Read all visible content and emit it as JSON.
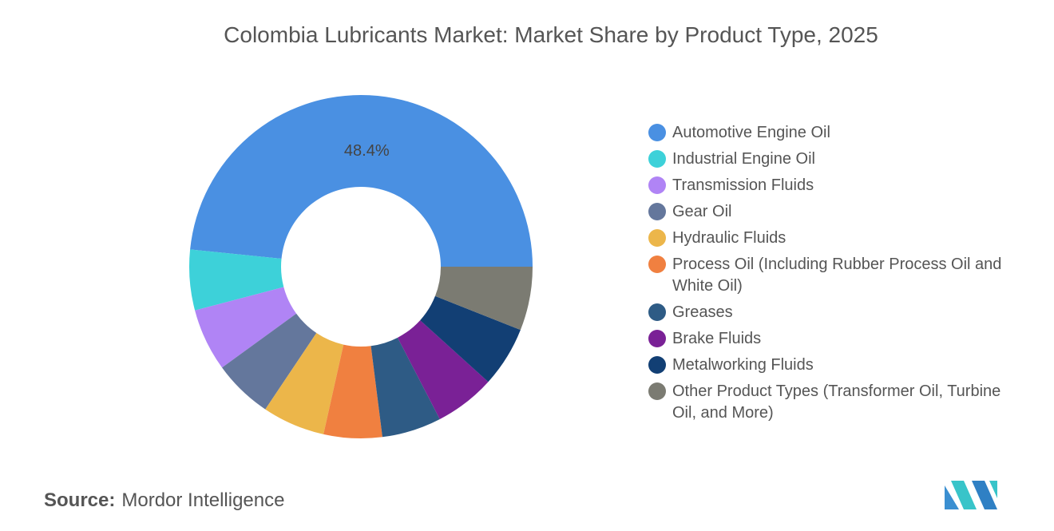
{
  "chart_data": {
    "type": "donut",
    "title": "Colombia Lubricants Market: Market Share by Product Type, 2025",
    "categories": [
      "Automotive Engine Oil",
      "Industrial Engine Oil",
      "Transmission Fluids",
      "Gear Oil",
      "Hydraulic Fluids",
      "Process Oil (Including Rubber Process Oil and White Oil)",
      "Greases",
      "Brake Fluids",
      "Metalworking Fluids",
      "Other Product Types (Transformer Oil, Turbine Oil, and More)"
    ],
    "values": [
      48.4,
      5.7,
      5.9,
      5.6,
      5.9,
      5.5,
      5.6,
      5.7,
      5.7,
      6.0
    ],
    "value_labels": [
      "48.4%",
      null,
      null,
      null,
      null,
      null,
      null,
      null,
      null,
      null
    ],
    "colors": [
      "#4a90e2",
      "#3dd1d9",
      "#b084f5",
      "#64779c",
      "#ecb64a",
      "#f08040",
      "#2e5b85",
      "#7a2196",
      "#123f74",
      "#7b7b72"
    ],
    "legend": "right"
  },
  "source_label": "Source:",
  "source": "Mordor Intelligence"
}
